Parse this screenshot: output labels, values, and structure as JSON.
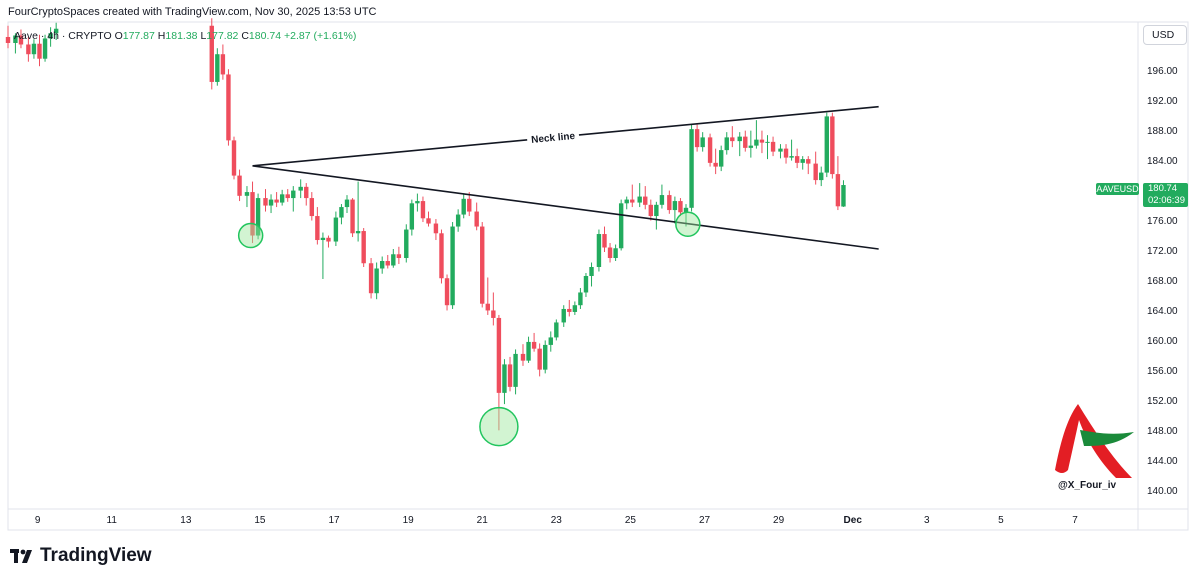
{
  "header": {
    "credit": "FourCryptoSpaces created with TradingView.com, Nov 30, 2025 13:53 UTC",
    "symbol_line": "Aave · 4h · CRYPTO",
    "open_label": "O",
    "open": "177.87",
    "high_label": "H",
    "high": "181.38",
    "low_label": "L",
    "low": "177.82",
    "close_label": "C",
    "close": "180.74",
    "change": "+2.87 (+1.61%)"
  },
  "price_scale": {
    "currency_button": "USD",
    "symbol_tag": "AAVEUSD",
    "last_price": "180.74",
    "countdown": "02:06:39"
  },
  "footer": {
    "brand": "TradingView"
  },
  "watermark": {
    "handle": "@X_Four_iv"
  },
  "colors": {
    "up": "#22ab5e",
    "down": "#ef4d5d",
    "line": "#131722",
    "circle_fill": "#9be79b",
    "circle_stroke": "#22c55e"
  },
  "chart_data": {
    "type": "candlestick",
    "title": "",
    "interval": "4h",
    "x_ticks": [
      "9",
      "11",
      "13",
      "15",
      "17",
      "19",
      "21",
      "23",
      "25",
      "27",
      "29",
      "Dec",
      "3",
      "5",
      "7"
    ],
    "x_tick_days": [
      9,
      11,
      13,
      15,
      17,
      19,
      21,
      23,
      25,
      27,
      29,
      31,
      33,
      35,
      37
    ],
    "y_ticks": [
      140,
      144,
      148,
      152,
      156,
      160,
      164,
      168,
      172,
      176,
      180,
      184,
      188,
      192,
      196
    ],
    "ylim": [
      137.5,
      202.5
    ],
    "xlim": [
      8.2,
      38.7
    ],
    "grid": false,
    "legend": "none",
    "candles": [
      {
        "d": 8.2,
        "o": 200.5,
        "h": 202.0,
        "l": 199.0,
        "c": 199.7
      },
      {
        "d": 8.4,
        "o": 199.7,
        "h": 201.0,
        "l": 198.3,
        "c": 200.7
      },
      {
        "d": 8.55,
        "o": 200.7,
        "h": 201.5,
        "l": 199.0,
        "c": 199.5
      },
      {
        "d": 8.75,
        "o": 199.5,
        "h": 200.5,
        "l": 197.2,
        "c": 198.2
      },
      {
        "d": 8.9,
        "o": 198.2,
        "h": 200.2,
        "l": 197.6,
        "c": 199.6
      },
      {
        "d": 9.05,
        "o": 199.6,
        "h": 200.8,
        "l": 196.6,
        "c": 197.6
      },
      {
        "d": 9.2,
        "o": 197.6,
        "h": 200.8,
        "l": 197.2,
        "c": 200.3
      },
      {
        "d": 9.35,
        "o": 200.3,
        "h": 201.8,
        "l": 199.2,
        "c": 201.0
      },
      {
        "d": 9.5,
        "o": 201.0,
        "h": 202.4,
        "l": 200.1,
        "c": 201.6
      },
      {
        "d": 13.7,
        "o": 202.0,
        "h": 203.0,
        "l": 193.5,
        "c": 194.5
      },
      {
        "d": 13.85,
        "o": 194.5,
        "h": 199.0,
        "l": 194.0,
        "c": 198.2
      },
      {
        "d": 14.0,
        "o": 198.2,
        "h": 199.5,
        "l": 194.8,
        "c": 195.5
      },
      {
        "d": 14.15,
        "o": 195.5,
        "h": 196.2,
        "l": 186.0,
        "c": 186.7
      },
      {
        "d": 14.3,
        "o": 186.7,
        "h": 187.2,
        "l": 181.5,
        "c": 182.0
      },
      {
        "d": 14.45,
        "o": 182.0,
        "h": 182.8,
        "l": 178.6,
        "c": 179.3
      },
      {
        "d": 14.65,
        "o": 179.3,
        "h": 180.6,
        "l": 177.8,
        "c": 179.8
      },
      {
        "d": 14.8,
        "o": 179.8,
        "h": 181.2,
        "l": 173.0,
        "c": 174.0
      },
      {
        "d": 14.95,
        "o": 174.0,
        "h": 179.6,
        "l": 173.5,
        "c": 179.0
      },
      {
        "d": 15.15,
        "o": 179.0,
        "h": 180.2,
        "l": 177.2,
        "c": 178.0
      },
      {
        "d": 15.3,
        "o": 178.0,
        "h": 179.5,
        "l": 177.0,
        "c": 178.8
      },
      {
        "d": 15.45,
        "o": 178.8,
        "h": 179.8,
        "l": 177.8,
        "c": 178.4
      },
      {
        "d": 15.6,
        "o": 178.4,
        "h": 180.1,
        "l": 178.0,
        "c": 179.5
      },
      {
        "d": 15.75,
        "o": 179.5,
        "h": 180.2,
        "l": 178.5,
        "c": 179.0
      },
      {
        "d": 15.9,
        "o": 179.0,
        "h": 180.6,
        "l": 177.2,
        "c": 180.0
      },
      {
        "d": 16.1,
        "o": 180.0,
        "h": 181.5,
        "l": 179.0,
        "c": 180.5
      },
      {
        "d": 16.25,
        "o": 180.5,
        "h": 181.0,
        "l": 178.0,
        "c": 179.0
      },
      {
        "d": 16.4,
        "o": 179.0,
        "h": 179.8,
        "l": 176.0,
        "c": 176.6
      },
      {
        "d": 16.55,
        "o": 176.6,
        "h": 177.8,
        "l": 172.8,
        "c": 173.4
      },
      {
        "d": 16.7,
        "o": 173.4,
        "h": 174.4,
        "l": 168.2,
        "c": 173.7
      },
      {
        "d": 16.85,
        "o": 173.7,
        "h": 174.0,
        "l": 172.4,
        "c": 173.2
      },
      {
        "d": 17.05,
        "o": 173.2,
        "h": 177.2,
        "l": 172.6,
        "c": 176.4
      },
      {
        "d": 17.2,
        "o": 176.4,
        "h": 178.2,
        "l": 175.5,
        "c": 177.8
      },
      {
        "d": 17.35,
        "o": 177.8,
        "h": 179.4,
        "l": 177.0,
        "c": 178.8
      },
      {
        "d": 17.5,
        "o": 178.8,
        "h": 179.0,
        "l": 173.8,
        "c": 174.3
      },
      {
        "d": 17.65,
        "o": 174.3,
        "h": 181.2,
        "l": 173.2,
        "c": 174.6
      },
      {
        "d": 17.8,
        "o": 174.6,
        "h": 175.0,
        "l": 169.8,
        "c": 170.3
      },
      {
        "d": 18.0,
        "o": 170.3,
        "h": 171.0,
        "l": 165.6,
        "c": 166.3
      },
      {
        "d": 18.15,
        "o": 166.3,
        "h": 170.4,
        "l": 165.5,
        "c": 169.6
      },
      {
        "d": 18.3,
        "o": 169.6,
        "h": 171.2,
        "l": 168.9,
        "c": 170.6
      },
      {
        "d": 18.45,
        "o": 170.6,
        "h": 171.4,
        "l": 169.6,
        "c": 170.0
      },
      {
        "d": 18.6,
        "o": 170.0,
        "h": 172.2,
        "l": 169.7,
        "c": 171.5
      },
      {
        "d": 18.75,
        "o": 171.5,
        "h": 172.5,
        "l": 170.2,
        "c": 171.0
      },
      {
        "d": 18.95,
        "o": 171.0,
        "h": 175.5,
        "l": 170.4,
        "c": 174.8
      },
      {
        "d": 19.1,
        "o": 174.8,
        "h": 178.8,
        "l": 174.0,
        "c": 178.3
      },
      {
        "d": 19.25,
        "o": 178.3,
        "h": 179.6,
        "l": 177.2,
        "c": 178.6
      },
      {
        "d": 19.4,
        "o": 178.6,
        "h": 179.2,
        "l": 175.8,
        "c": 176.3
      },
      {
        "d": 19.55,
        "o": 176.3,
        "h": 177.2,
        "l": 175.2,
        "c": 175.6
      },
      {
        "d": 19.75,
        "o": 175.6,
        "h": 176.2,
        "l": 173.4,
        "c": 174.3
      },
      {
        "d": 19.9,
        "o": 174.3,
        "h": 174.8,
        "l": 167.6,
        "c": 168.3
      },
      {
        "d": 20.05,
        "o": 168.3,
        "h": 168.8,
        "l": 164.0,
        "c": 164.7
      },
      {
        "d": 20.2,
        "o": 164.7,
        "h": 175.8,
        "l": 164.2,
        "c": 175.2
      },
      {
        "d": 20.35,
        "o": 175.2,
        "h": 177.5,
        "l": 174.5,
        "c": 176.8
      },
      {
        "d": 20.5,
        "o": 176.8,
        "h": 179.6,
        "l": 176.3,
        "c": 178.9
      },
      {
        "d": 20.65,
        "o": 178.9,
        "h": 179.8,
        "l": 176.6,
        "c": 177.2
      },
      {
        "d": 20.85,
        "o": 177.2,
        "h": 178.4,
        "l": 174.7,
        "c": 175.2
      },
      {
        "d": 21.0,
        "o": 175.2,
        "h": 175.8,
        "l": 164.4,
        "c": 164.9
      },
      {
        "d": 21.15,
        "o": 164.9,
        "h": 168.4,
        "l": 163.4,
        "c": 164.0
      },
      {
        "d": 21.3,
        "o": 164.0,
        "h": 166.4,
        "l": 162.0,
        "c": 163.0
      },
      {
        "d": 21.45,
        "o": 163.0,
        "h": 163.4,
        "l": 148.0,
        "c": 153.0
      },
      {
        "d": 21.6,
        "o": 153.0,
        "h": 157.5,
        "l": 151.5,
        "c": 156.8
      },
      {
        "d": 21.75,
        "o": 156.8,
        "h": 157.8,
        "l": 153.2,
        "c": 153.8
      },
      {
        "d": 21.9,
        "o": 153.8,
        "h": 158.8,
        "l": 152.8,
        "c": 158.2
      },
      {
        "d": 22.1,
        "o": 158.2,
        "h": 159.5,
        "l": 156.6,
        "c": 157.3
      },
      {
        "d": 22.25,
        "o": 157.3,
        "h": 160.5,
        "l": 157.0,
        "c": 159.8
      },
      {
        "d": 22.4,
        "o": 159.8,
        "h": 161.0,
        "l": 158.5,
        "c": 158.9
      },
      {
        "d": 22.55,
        "o": 158.9,
        "h": 159.6,
        "l": 155.2,
        "c": 156.1
      },
      {
        "d": 22.7,
        "o": 156.1,
        "h": 160.0,
        "l": 155.6,
        "c": 159.4
      },
      {
        "d": 22.85,
        "o": 159.4,
        "h": 161.2,
        "l": 158.5,
        "c": 160.4
      },
      {
        "d": 23.0,
        "o": 160.4,
        "h": 162.8,
        "l": 160.0,
        "c": 162.4
      },
      {
        "d": 23.2,
        "o": 162.4,
        "h": 164.7,
        "l": 161.8,
        "c": 164.2
      },
      {
        "d": 23.35,
        "o": 164.2,
        "h": 165.4,
        "l": 163.2,
        "c": 163.8
      },
      {
        "d": 23.5,
        "o": 163.8,
        "h": 165.2,
        "l": 163.4,
        "c": 164.7
      },
      {
        "d": 23.65,
        "o": 164.7,
        "h": 167.0,
        "l": 164.2,
        "c": 166.4
      },
      {
        "d": 23.8,
        "o": 166.4,
        "h": 169.0,
        "l": 165.8,
        "c": 168.6
      },
      {
        "d": 23.95,
        "o": 168.6,
        "h": 170.4,
        "l": 167.2,
        "c": 169.8
      },
      {
        "d": 24.15,
        "o": 169.8,
        "h": 174.8,
        "l": 169.2,
        "c": 174.2
      },
      {
        "d": 24.3,
        "o": 174.2,
        "h": 175.2,
        "l": 171.8,
        "c": 172.4
      },
      {
        "d": 24.45,
        "o": 172.4,
        "h": 173.0,
        "l": 170.4,
        "c": 171.0
      },
      {
        "d": 24.6,
        "o": 171.0,
        "h": 172.8,
        "l": 170.6,
        "c": 172.3
      },
      {
        "d": 24.75,
        "o": 172.3,
        "h": 178.8,
        "l": 172.0,
        "c": 178.3
      },
      {
        "d": 24.9,
        "o": 178.3,
        "h": 179.2,
        "l": 177.5,
        "c": 178.8
      },
      {
        "d": 25.05,
        "o": 178.8,
        "h": 180.8,
        "l": 177.8,
        "c": 178.4
      },
      {
        "d": 25.25,
        "o": 178.4,
        "h": 181.0,
        "l": 177.8,
        "c": 179.2
      },
      {
        "d": 25.4,
        "o": 179.2,
        "h": 180.6,
        "l": 177.5,
        "c": 178.1
      },
      {
        "d": 25.55,
        "o": 178.1,
        "h": 178.8,
        "l": 176.0,
        "c": 176.6
      },
      {
        "d": 25.7,
        "o": 176.6,
        "h": 178.5,
        "l": 174.8,
        "c": 178.1
      },
      {
        "d": 25.85,
        "o": 178.1,
        "h": 180.8,
        "l": 177.6,
        "c": 179.4
      },
      {
        "d": 26.05,
        "o": 179.4,
        "h": 180.0,
        "l": 176.9,
        "c": 177.4
      },
      {
        "d": 26.2,
        "o": 177.4,
        "h": 179.2,
        "l": 175.6,
        "c": 178.6
      },
      {
        "d": 26.35,
        "o": 178.6,
        "h": 179.0,
        "l": 176.6,
        "c": 177.1
      },
      {
        "d": 26.5,
        "o": 177.1,
        "h": 178.2,
        "l": 175.2,
        "c": 177.7
      },
      {
        "d": 26.65,
        "o": 177.7,
        "h": 188.8,
        "l": 177.2,
        "c": 188.2
      },
      {
        "d": 26.8,
        "o": 188.2,
        "h": 188.8,
        "l": 185.2,
        "c": 185.8
      },
      {
        "d": 26.95,
        "o": 185.8,
        "h": 187.8,
        "l": 185.2,
        "c": 187.1
      },
      {
        "d": 27.15,
        "o": 187.1,
        "h": 187.6,
        "l": 183.2,
        "c": 183.7
      },
      {
        "d": 27.3,
        "o": 183.7,
        "h": 185.6,
        "l": 182.2,
        "c": 183.2
      },
      {
        "d": 27.45,
        "o": 183.2,
        "h": 186.0,
        "l": 182.6,
        "c": 185.4
      },
      {
        "d": 27.6,
        "o": 185.4,
        "h": 187.8,
        "l": 184.8,
        "c": 187.1
      },
      {
        "d": 27.75,
        "o": 187.1,
        "h": 188.6,
        "l": 185.8,
        "c": 186.6
      },
      {
        "d": 27.95,
        "o": 186.6,
        "h": 187.8,
        "l": 184.6,
        "c": 187.2
      },
      {
        "d": 28.1,
        "o": 187.2,
        "h": 188.0,
        "l": 185.2,
        "c": 185.7
      },
      {
        "d": 28.25,
        "o": 185.7,
        "h": 188.0,
        "l": 184.4,
        "c": 186.0
      },
      {
        "d": 28.4,
        "o": 186.0,
        "h": 189.4,
        "l": 185.6,
        "c": 186.8
      },
      {
        "d": 28.55,
        "o": 186.8,
        "h": 188.0,
        "l": 185.0,
        "c": 186.4
      },
      {
        "d": 28.7,
        "o": 186.4,
        "h": 187.4,
        "l": 184.2,
        "c": 186.5
      },
      {
        "d": 28.85,
        "o": 186.5,
        "h": 187.2,
        "l": 184.6,
        "c": 185.2
      },
      {
        "d": 29.05,
        "o": 185.2,
        "h": 186.2,
        "l": 184.3,
        "c": 185.6
      },
      {
        "d": 29.2,
        "o": 185.6,
        "h": 186.2,
        "l": 183.6,
        "c": 184.4
      },
      {
        "d": 29.35,
        "o": 184.4,
        "h": 186.8,
        "l": 184.0,
        "c": 184.6
      },
      {
        "d": 29.5,
        "o": 184.6,
        "h": 185.6,
        "l": 183.0,
        "c": 183.7
      },
      {
        "d": 29.65,
        "o": 183.7,
        "h": 184.6,
        "l": 182.8,
        "c": 184.2
      },
      {
        "d": 29.8,
        "o": 184.2,
        "h": 184.6,
        "l": 182.2,
        "c": 183.6
      },
      {
        "d": 30.0,
        "o": 183.6,
        "h": 185.2,
        "l": 180.8,
        "c": 181.4
      },
      {
        "d": 30.15,
        "o": 181.4,
        "h": 183.2,
        "l": 180.6,
        "c": 182.4
      },
      {
        "d": 30.3,
        "o": 182.4,
        "h": 190.4,
        "l": 181.8,
        "c": 189.9
      },
      {
        "d": 30.45,
        "o": 189.9,
        "h": 190.4,
        "l": 181.6,
        "c": 182.2
      },
      {
        "d": 30.6,
        "o": 182.2,
        "h": 184.6,
        "l": 177.4,
        "c": 177.9
      },
      {
        "d": 30.75,
        "o": 177.87,
        "h": 181.38,
        "l": 177.82,
        "c": 180.74
      }
    ],
    "trendlines": [
      {
        "label": "Neck line",
        "from": {
          "d": 14.8,
          "p": 183.3
        },
        "to": {
          "d": 31.7,
          "p": 191.2
        }
      },
      {
        "label": "",
        "from": {
          "d": 14.8,
          "p": 183.3
        },
        "to": {
          "d": 31.7,
          "p": 172.2
        }
      }
    ],
    "markers": [
      {
        "type": "circle",
        "d": 14.75,
        "p": 174.0,
        "size": "small"
      },
      {
        "type": "circle",
        "d": 21.45,
        "p": 148.5,
        "size": "large"
      },
      {
        "type": "circle",
        "d": 26.55,
        "p": 175.5,
        "size": "small"
      }
    ]
  }
}
